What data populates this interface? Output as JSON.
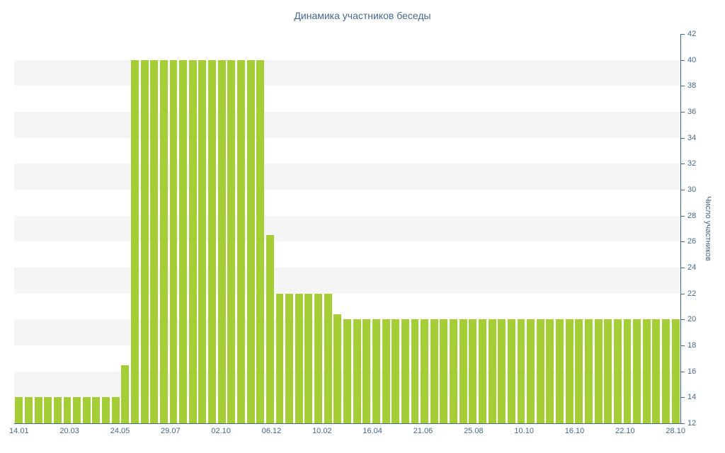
{
  "colors": {
    "bar": "#a5cd35",
    "stripe": "#f5f5f5",
    "axis-text": "#45688e",
    "axis-line": "#45688e"
  },
  "chart_data": {
    "type": "bar",
    "title": "Динамика участников беседы",
    "xlabel": "",
    "ylabel": "Число участников",
    "ylim": [
      12,
      42
    ],
    "baseline": 12,
    "grid": "banded",
    "legend": "none",
    "y_ticks": [
      12,
      14,
      16,
      18,
      20,
      22,
      24,
      26,
      28,
      30,
      32,
      34,
      36,
      38,
      40,
      42
    ],
    "grid_bands": [
      [
        14,
        16
      ],
      [
        18,
        20
      ],
      [
        22,
        24
      ],
      [
        26,
        28
      ],
      [
        30,
        32
      ],
      [
        34,
        36
      ],
      [
        38,
        40
      ]
    ],
    "x_tick_labels": [
      "14.01",
      "20.03",
      "24.05",
      "29.07",
      "02.10",
      "06.12",
      "10.02",
      "16.04",
      "21.06",
      "25.08",
      "10.10",
      "16.10",
      "22.10",
      "28.10"
    ],
    "values": [
      14,
      14,
      14,
      14,
      14,
      14,
      14,
      14,
      14,
      14,
      14,
      16.5,
      40,
      40,
      40,
      40,
      40,
      40,
      40,
      40,
      40,
      40,
      40,
      40,
      40,
      40,
      26.5,
      22,
      22,
      22,
      22,
      22,
      22,
      20.4,
      20,
      20,
      20,
      20,
      20,
      20,
      20,
      20,
      20,
      20,
      20,
      20,
      20,
      20,
      20,
      20,
      20,
      20,
      20,
      20,
      20,
      20,
      20,
      20,
      20,
      20,
      20,
      20,
      20,
      20,
      20,
      20,
      20,
      20,
      20
    ]
  }
}
